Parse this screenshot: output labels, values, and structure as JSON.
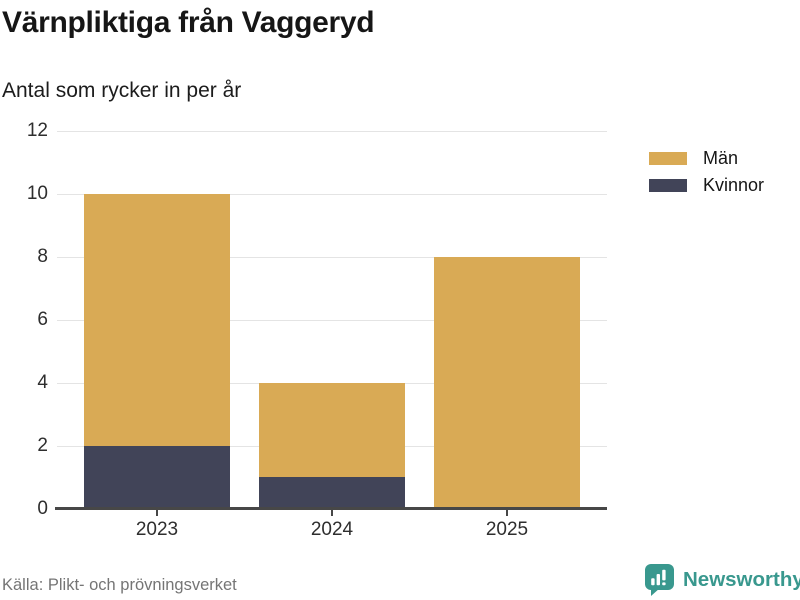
{
  "header": {
    "title": "Värnpliktiga från Vaggeryd",
    "subtitle": "Antal som rycker in per år"
  },
  "chart_data": {
    "type": "bar",
    "stacked": true,
    "title": "Värnpliktiga från Vaggeryd",
    "subtitle": "Antal som rycker in per år",
    "categories": [
      "2023",
      "2024",
      "2025"
    ],
    "series": [
      {
        "name": "Män",
        "color": "#d9aa55",
        "values": [
          8,
          3,
          8
        ]
      },
      {
        "name": "Kvinnor",
        "color": "#414458",
        "values": [
          2,
          1,
          0
        ]
      }
    ],
    "stack_bottom_to_top": [
      "Kvinnor",
      "Män"
    ],
    "totals": [
      10,
      4,
      8
    ],
    "xlabel": "",
    "ylabel": "",
    "ylim": [
      0,
      12
    ],
    "yticks": [
      0,
      2,
      4,
      6,
      8,
      10,
      12
    ],
    "grid": true,
    "legend_position": "right"
  },
  "legend": {
    "items": [
      {
        "label": "Män",
        "color": "#d9aa55"
      },
      {
        "label": "Kvinnor",
        "color": "#414458"
      }
    ]
  },
  "footer": {
    "source": "Källa: Plikt- och prövningsverket",
    "brand": "Newsworthy",
    "brand_color": "#39988e"
  }
}
